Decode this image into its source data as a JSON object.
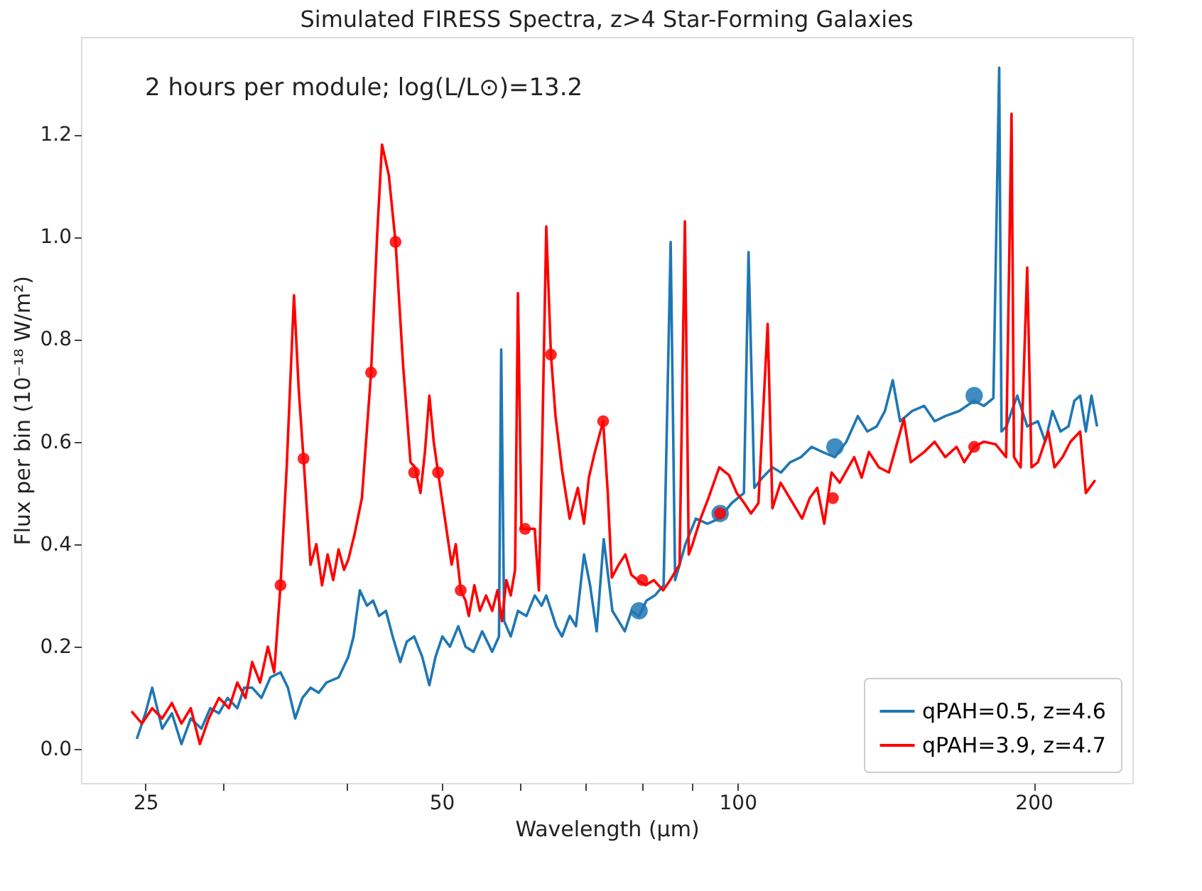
{
  "chart_data": {
    "type": "line",
    "title": "Simulated FIRESS Spectra, z>4 Star-Forming Galaxies",
    "xlabel": "Wavelength (μm)",
    "ylabel": "Flux per bin (10⁻¹⁸ W/m²)",
    "annotations": [
      "2 hours per module; log(L/L⊙)=13.2"
    ],
    "log": "x",
    "legend": "bottom right",
    "xlim": [
      21.5,
      252
    ],
    "ylim": [
      -0.066,
      1.39
    ],
    "xticks": [
      25,
      {
        "value": 30,
        "label": null
      },
      {
        "value": 40,
        "label": null
      },
      50,
      {
        "value": 60,
        "label": null
      },
      {
        "value": 70,
        "label": null
      },
      {
        "value": 80,
        "label": null
      },
      {
        "value": 90,
        "label": null
      },
      100,
      200
    ],
    "yticks": [
      {
        "value": 0,
        "label": "0.0"
      },
      {
        "value": 0.2,
        "label": "0.2"
      },
      {
        "value": 0.4,
        "label": "0.4"
      },
      {
        "value": 0.6,
        "label": "0.6"
      },
      {
        "value": 0.8,
        "label": "0.8"
      },
      {
        "value": 1.0,
        "label": "1.0"
      },
      {
        "value": 1.2,
        "label": "1.2"
      }
    ],
    "series": [
      {
        "name": "qPAH=0.5, z=4.6",
        "color": "#1f77b4",
        "x": [
          24.5,
          25.0,
          25.4,
          26.0,
          26.6,
          27.2,
          27.8,
          28.5,
          29.1,
          29.7,
          30.3,
          31.0,
          31.5,
          32.1,
          32.8,
          33.5,
          34.3,
          34.9,
          35.5,
          36.1,
          36.8,
          37.5,
          38.2,
          39.3,
          40.2,
          40.7,
          41.3,
          42.0,
          42.6,
          43.2,
          43.9,
          44.6,
          45.4,
          46.1,
          46.9,
          47.8,
          48.6,
          49.3,
          50.1,
          51.0,
          52.0,
          52.9,
          53.9,
          55.0,
          56.3,
          57.2,
          57.5,
          57.9,
          58.8,
          59.8,
          61.0,
          62.2,
          63.2,
          63.9,
          65.4,
          66.3,
          67.5,
          68.5,
          69.8,
          70.8,
          71.9,
          73.1,
          74.6,
          75.7,
          76.8,
          78.0,
          79.4,
          80.8,
          82.4,
          84.1,
          85.5,
          86.4,
          88.5,
          90.7,
          93.2,
          95.8,
          98.6,
          101.5,
          102.6,
          104.0,
          106.0,
          108.5,
          110.7,
          113.1,
          116.0,
          118.9,
          122.0,
          125.6,
          129.0,
          132.5,
          135.5,
          138.5,
          141.2,
          143.8,
          146.3,
          150.5,
          154.8,
          158.6,
          162.6,
          168.0,
          174.0,
          178.0,
          182.0,
          184.5,
          185.5,
          187.7,
          190.0,
          192.5,
          197.0,
          202.0,
          205.5,
          209.0,
          213.0,
          217.0,
          220.0,
          223.0,
          226.0,
          229.0,
          232.0
        ],
        "values": [
          0.02,
          0.07,
          0.12,
          0.04,
          0.07,
          0.01,
          0.06,
          0.04,
          0.08,
          0.07,
          0.1,
          0.08,
          0.12,
          0.12,
          0.1,
          0.14,
          0.15,
          0.12,
          0.06,
          0.1,
          0.12,
          0.11,
          0.13,
          0.14,
          0.18,
          0.22,
          0.31,
          0.28,
          0.29,
          0.26,
          0.27,
          0.22,
          0.17,
          0.21,
          0.22,
          0.18,
          0.125,
          0.18,
          0.22,
          0.2,
          0.24,
          0.2,
          0.19,
          0.23,
          0.19,
          0.22,
          0.78,
          0.25,
          0.22,
          0.27,
          0.26,
          0.3,
          0.28,
          0.3,
          0.24,
          0.22,
          0.26,
          0.24,
          0.38,
          0.32,
          0.23,
          0.41,
          0.27,
          0.25,
          0.23,
          0.27,
          0.26,
          0.29,
          0.3,
          0.32,
          0.99,
          0.33,
          0.4,
          0.45,
          0.44,
          0.45,
          0.48,
          0.5,
          0.97,
          0.51,
          0.53,
          0.55,
          0.54,
          0.56,
          0.57,
          0.59,
          0.58,
          0.57,
          0.6,
          0.65,
          0.62,
          0.63,
          0.66,
          0.72,
          0.64,
          0.66,
          0.67,
          0.64,
          0.65,
          0.66,
          0.68,
          0.67,
          0.685,
          1.33,
          0.62,
          0.63,
          0.66,
          0.69,
          0.63,
          0.64,
          0.6,
          0.66,
          0.62,
          0.63,
          0.68,
          0.69,
          0.62,
          0.69,
          0.63
        ]
      },
      {
        "name": "qPAH=3.9, z=4.7",
        "color": "#ff0000",
        "x": [
          24.2,
          24.8,
          25.4,
          26.0,
          26.6,
          27.2,
          27.8,
          28.4,
          29.0,
          29.7,
          30.4,
          31.0,
          31.6,
          32.1,
          32.7,
          33.3,
          33.8,
          34.3,
          34.8,
          35.4,
          35.8,
          36.2,
          36.8,
          37.3,
          37.8,
          38.3,
          38.8,
          39.3,
          39.8,
          40.2,
          40.8,
          41.5,
          42.4,
          43.0,
          43.5,
          44.2,
          44.9,
          45.7,
          46.5,
          47.0,
          47.6,
          48.1,
          48.6,
          49.1,
          49.6,
          50.4,
          51.2,
          51.7,
          52.3,
          52.9,
          53.3,
          54.0,
          54.7,
          55.5,
          56.3,
          57.0,
          57.6,
          58.2,
          58.8,
          59.4,
          59.8,
          60.3,
          61.2,
          62.2,
          62.8,
          63.3,
          63.9,
          64.6,
          65.3,
          66.3,
          67.5,
          68.8,
          69.8,
          70.6,
          71.6,
          73.0,
          73.8,
          74.5,
          75.7,
          76.9,
          78.0,
          79.2,
          80.6,
          82.2,
          84.0,
          85.4,
          87.3,
          88.4,
          89.2,
          90.0,
          91.7,
          93.4,
          95.8,
          98.0,
          99.8,
          101.6,
          103.2,
          105.0,
          107.3,
          108.5,
          110.6,
          113.0,
          116.3,
          118.4,
          120.5,
          122.5,
          124.6,
          127.0,
          131.4,
          133.7,
          136.0,
          139.2,
          142.5,
          147.6,
          150.0,
          154.8,
          158.6,
          162.6,
          167.0,
          170.0,
          174.0,
          178.0,
          183.0,
          187.5,
          189.9,
          191.0,
          194.0,
          197.0,
          199.0,
          202.0,
          207.0,
          210.0,
          214.0,
          218.0,
          223.0,
          226.0,
          231.0
        ],
        "values": [
          0.074,
          0.05,
          0.08,
          0.06,
          0.09,
          0.05,
          0.08,
          0.01,
          0.06,
          0.1,
          0.08,
          0.13,
          0.1,
          0.17,
          0.13,
          0.2,
          0.15,
          0.32,
          0.55,
          0.886,
          0.7,
          0.567,
          0.36,
          0.4,
          0.32,
          0.38,
          0.33,
          0.39,
          0.35,
          0.37,
          0.42,
          0.49,
          0.735,
          1.0,
          1.18,
          1.12,
          0.99,
          0.75,
          0.56,
          0.55,
          0.5,
          0.58,
          0.69,
          0.6,
          0.54,
          0.45,
          0.36,
          0.4,
          0.31,
          0.29,
          0.26,
          0.32,
          0.27,
          0.3,
          0.27,
          0.31,
          0.25,
          0.33,
          0.3,
          0.35,
          0.89,
          0.43,
          0.43,
          0.43,
          0.31,
          0.6,
          1.02,
          0.77,
          0.65,
          0.545,
          0.45,
          0.51,
          0.44,
          0.53,
          0.58,
          0.64,
          0.5,
          0.335,
          0.36,
          0.38,
          0.34,
          0.33,
          0.32,
          0.33,
          0.31,
          0.33,
          0.36,
          1.03,
          0.38,
          0.4,
          0.45,
          0.49,
          0.55,
          0.535,
          0.5,
          0.48,
          0.46,
          0.48,
          0.83,
          0.47,
          0.52,
          0.49,
          0.45,
          0.49,
          0.51,
          0.44,
          0.54,
          0.52,
          0.57,
          0.53,
          0.58,
          0.55,
          0.54,
          0.645,
          0.56,
          0.58,
          0.6,
          0.57,
          0.59,
          0.56,
          0.59,
          0.6,
          0.595,
          0.57,
          1.24,
          0.57,
          0.55,
          0.94,
          0.55,
          0.56,
          0.62,
          0.55,
          0.57,
          0.6,
          0.62,
          0.5,
          0.525
        ]
      },
      {
        "color": "#1f77b4",
        "type": "scatter",
        "marker": "circle",
        "x": [
          79.4,
          96.0,
          125.6,
          174.0
        ],
        "values": [
          0.27,
          0.46,
          0.59,
          0.69
        ]
      },
      {
        "color": "#ff0000",
        "type": "scatter",
        "marker": "circle",
        "x": [
          34.3,
          36.2,
          42.4,
          44.9,
          46.9,
          49.6,
          52.3,
          60.8,
          64.6,
          73.0,
          80.0,
          96.0,
          125.0,
          174.0
        ],
        "values": [
          0.32,
          0.567,
          0.735,
          0.99,
          0.54,
          0.54,
          0.31,
          0.43,
          0.77,
          0.64,
          0.33,
          0.46,
          0.49,
          0.59
        ]
      }
    ]
  }
}
